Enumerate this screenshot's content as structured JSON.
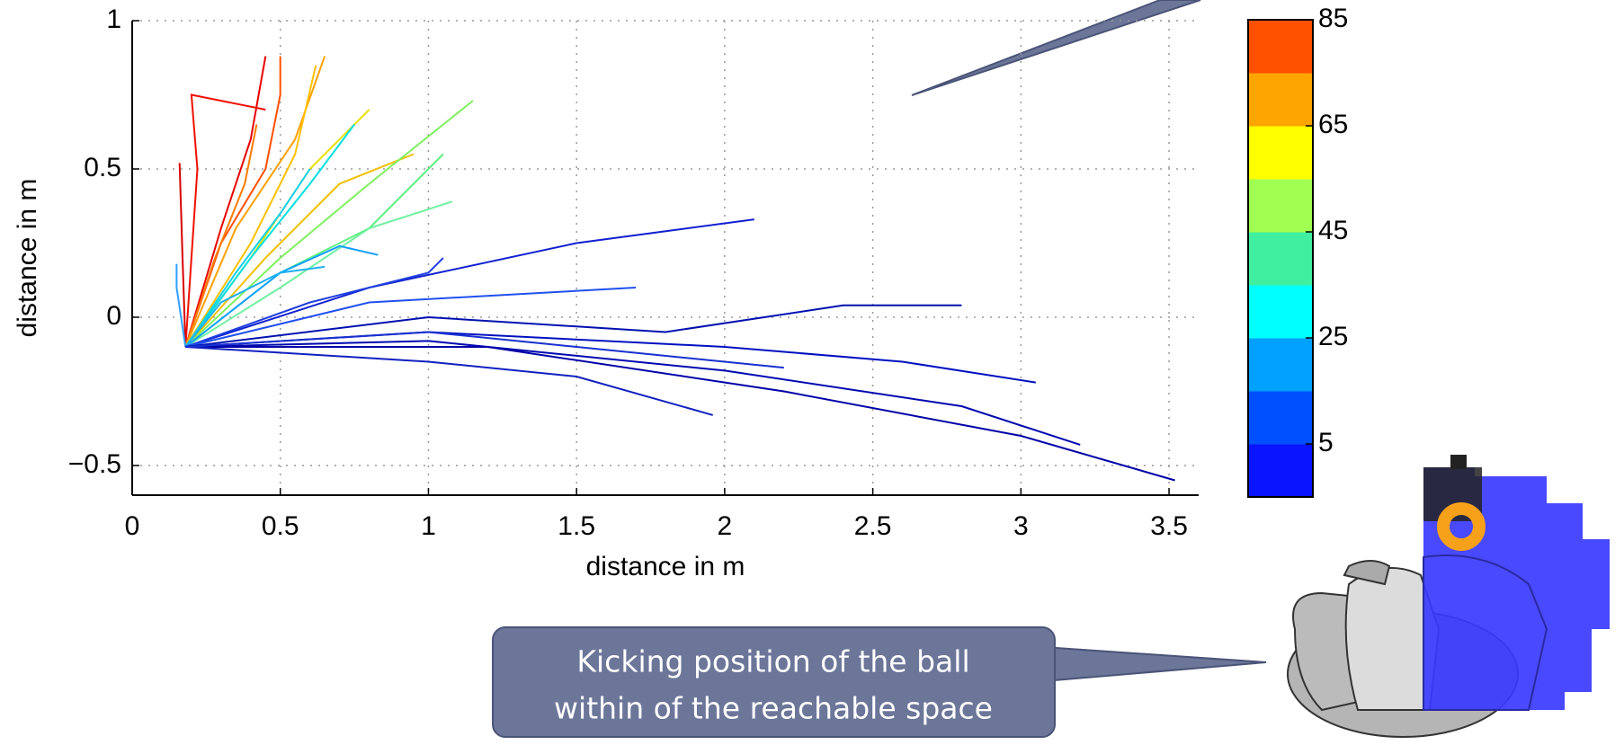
{
  "chart_data": {
    "type": "line",
    "xlabel": "distance in m",
    "ylabel": "distance in m",
    "xlim": [
      0,
      3.6
    ],
    "ylim": [
      -0.6,
      1
    ],
    "xticks": [
      0,
      0.5,
      1,
      1.5,
      2,
      2.5,
      3,
      3.5
    ],
    "yticks": [
      {
        "value": -0.5,
        "label": "−0.5"
      },
      0,
      0.5,
      1
    ],
    "grid": true,
    "series": [
      {
        "color": "#e80000",
        "x": [
          0.18,
          0.3,
          0.4,
          0.45
        ],
        "values": [
          -0.1,
          0.3,
          0.6,
          0.88
        ]
      },
      {
        "color": "#f01000",
        "x": [
          0.18,
          0.2,
          0.22,
          0.2,
          0.45
        ],
        "values": [
          -0.1,
          0.2,
          0.5,
          0.75,
          0.7
        ]
      },
      {
        "color": "#d80000",
        "x": [
          0.18,
          0.17,
          0.16
        ],
        "values": [
          -0.1,
          0.2,
          0.52
        ]
      },
      {
        "color": "#ff5000",
        "x": [
          0.18,
          0.3,
          0.45,
          0.5,
          0.5
        ],
        "values": [
          -0.1,
          0.25,
          0.5,
          0.75,
          0.88
        ]
      },
      {
        "color": "#ff7a00",
        "x": [
          0.18,
          0.28,
          0.38,
          0.42
        ],
        "values": [
          -0.1,
          0.2,
          0.45,
          0.65
        ]
      },
      {
        "color": "#ffa000",
        "x": [
          0.18,
          0.35,
          0.55,
          0.65
        ],
        "values": [
          -0.1,
          0.3,
          0.6,
          0.88
        ]
      },
      {
        "color": "#ffc000",
        "x": [
          0.18,
          0.4,
          0.55,
          0.62
        ],
        "values": [
          -0.1,
          0.25,
          0.55,
          0.85
        ]
      },
      {
        "color": "#f0c000",
        "x": [
          0.18,
          0.45,
          0.7,
          0.95
        ],
        "values": [
          -0.1,
          0.2,
          0.45,
          0.55
        ]
      },
      {
        "color": "#e8e000",
        "x": [
          0.18,
          0.4,
          0.6,
          0.8
        ],
        "values": [
          -0.1,
          0.2,
          0.5,
          0.7
        ]
      },
      {
        "color": "#80f060",
        "x": [
          0.18,
          0.5,
          0.8,
          1.15
        ],
        "values": [
          -0.1,
          0.2,
          0.45,
          0.73
        ]
      },
      {
        "color": "#60f080",
        "x": [
          0.18,
          0.5,
          0.8,
          1.05
        ],
        "values": [
          -0.1,
          0.15,
          0.3,
          0.55
        ]
      },
      {
        "color": "#70f0a0",
        "x": [
          0.18,
          0.5,
          0.8,
          1.08
        ],
        "values": [
          -0.1,
          0.1,
          0.3,
          0.39
        ]
      },
      {
        "color": "#00e0e0",
        "x": [
          0.18,
          0.4,
          0.6,
          0.75
        ],
        "values": [
          -0.1,
          0.2,
          0.45,
          0.65
        ]
      },
      {
        "color": "#10d0f0",
        "x": [
          0.18,
          0.35,
          0.5,
          0.6
        ],
        "values": [
          -0.1,
          0.15,
          0.35,
          0.5
        ]
      },
      {
        "color": "#10a0ff",
        "x": [
          0.18,
          0.5,
          0.7,
          0.83
        ],
        "values": [
          -0.1,
          0.15,
          0.24,
          0.21
        ]
      },
      {
        "color": "#20b0f0",
        "x": [
          0.18,
          0.3,
          0.5,
          0.65
        ],
        "values": [
          -0.1,
          0.05,
          0.15,
          0.17
        ]
      },
      {
        "color": "#30a0ff",
        "x": [
          0.18,
          0.15,
          0.15
        ],
        "values": [
          -0.1,
          0.1,
          0.18
        ]
      },
      {
        "color": "#1020d0",
        "x": [
          0.18,
          0.8,
          1.5,
          2.1
        ],
        "values": [
          -0.1,
          0.1,
          0.25,
          0.33
        ]
      },
      {
        "color": "#2040e0",
        "x": [
          0.18,
          0.6,
          1.0,
          1.05
        ],
        "values": [
          -0.1,
          0.05,
          0.15,
          0.2
        ]
      },
      {
        "color": "#2050f0",
        "x": [
          0.18,
          0.8,
          1.7
        ],
        "values": [
          -0.1,
          0.05,
          0.1
        ]
      },
      {
        "color": "#0010b0",
        "x": [
          0.18,
          1.0,
          1.8,
          2.4,
          2.8
        ],
        "values": [
          -0.1,
          0.0,
          -0.05,
          0.04,
          0.04
        ]
      },
      {
        "color": "#0010c0",
        "x": [
          0.18,
          1.0,
          2.0,
          2.6,
          3.05
        ],
        "values": [
          -0.1,
          -0.05,
          -0.1,
          -0.15,
          -0.22
        ]
      },
      {
        "color": "#0008b0",
        "x": [
          0.18,
          1.0,
          2.0,
          2.8,
          3.2
        ],
        "values": [
          -0.1,
          -0.08,
          -0.18,
          -0.3,
          -0.43
        ]
      },
      {
        "color": "#0000a8",
        "x": [
          0.18,
          1.2,
          2.2,
          3.0,
          3.52
        ],
        "values": [
          -0.1,
          -0.1,
          -0.25,
          -0.4,
          -0.55
        ]
      },
      {
        "color": "#1020c0",
        "x": [
          0.18,
          1.0,
          1.5,
          1.96
        ],
        "values": [
          -0.1,
          -0.15,
          -0.2,
          -0.33
        ]
      },
      {
        "color": "#1830d0",
        "x": [
          0.18,
          1.0,
          1.7,
          2.2
        ],
        "values": [
          -0.1,
          -0.05,
          -0.12,
          -0.17
        ]
      }
    ],
    "colorbar": {
      "lim": [
        -5,
        85
      ],
      "ticks": [
        5,
        25,
        45,
        65,
        85
      ],
      "colors": [
        "#0a14ff",
        "#0050ff",
        "#00a0ff",
        "#00ffff",
        "#40f0a0",
        "#a0ff50",
        "#ffff00",
        "#ffa500",
        "#ff5000"
      ]
    },
    "annotations": [
      "Kicking position of the ball",
      "within of the reachable space"
    ]
  }
}
